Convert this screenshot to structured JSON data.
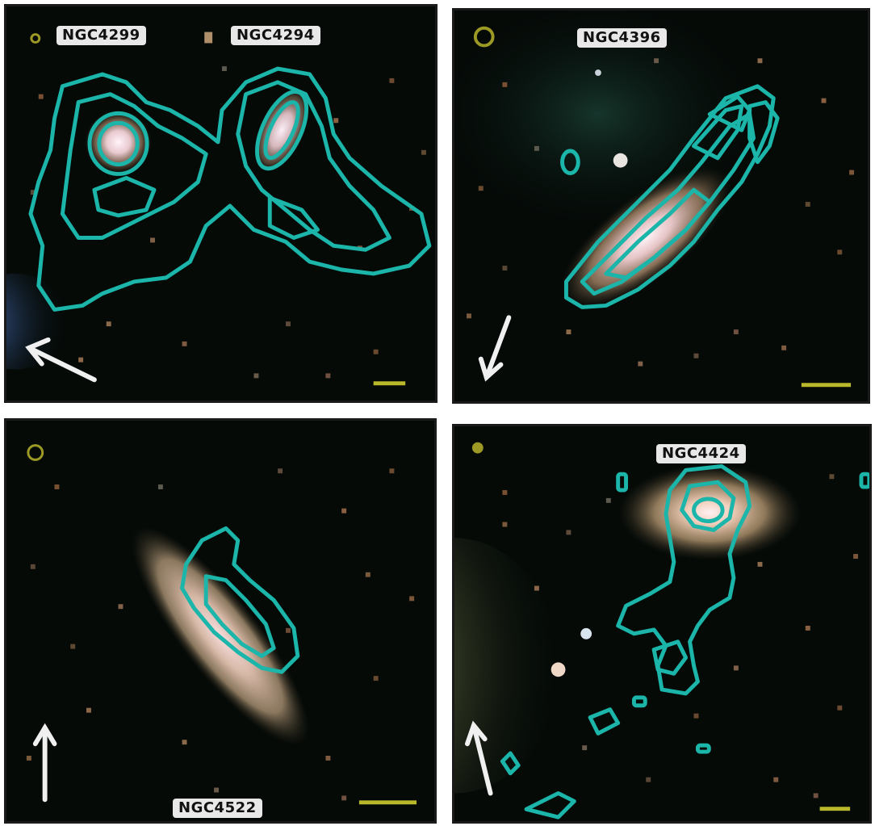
{
  "panels": [
    {
      "id": "top-left",
      "labels": [
        "NGC4299",
        "NGC4294"
      ]
    },
    {
      "id": "top-right",
      "labels": [
        "NGC4396"
      ]
    },
    {
      "id": "bottom-left",
      "labels": [
        "NGC4522"
      ]
    },
    {
      "id": "bottom-right",
      "labels": [
        "NGC4424"
      ]
    }
  ],
  "colors": {
    "sky": "#050a07",
    "contour": "#1bb5aa",
    "scale_bar": "#b9b82a",
    "beam_marker": "#9c9a24",
    "arrow": "#f0f0f0"
  }
}
